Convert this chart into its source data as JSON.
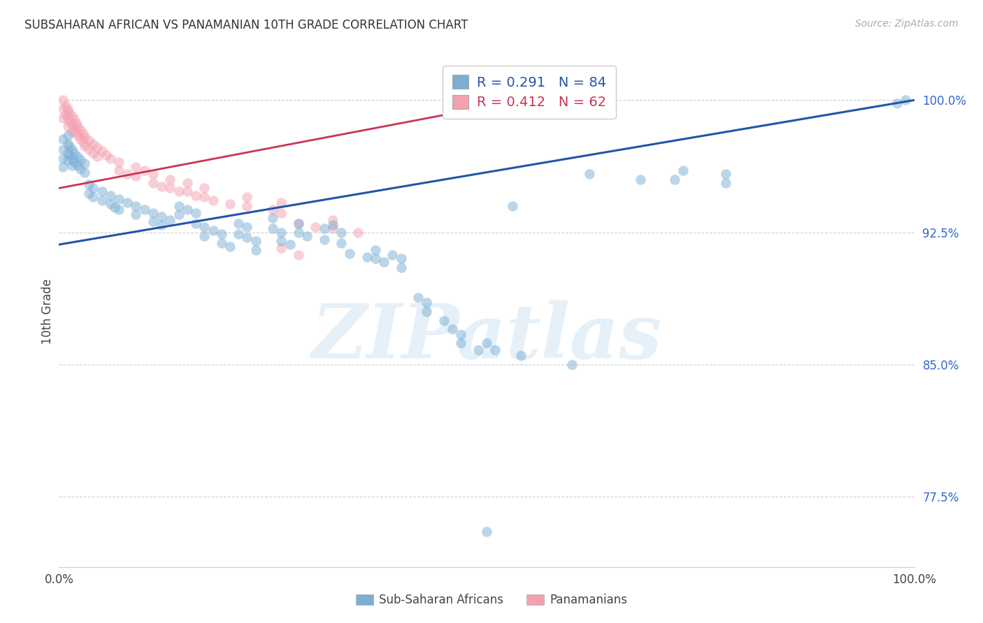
{
  "title": "SUBSAHARAN AFRICAN VS PANAMANIAN 10TH GRADE CORRELATION CHART",
  "source": "Source: ZipAtlas.com",
  "ylabel": "10th Grade",
  "yticks": [
    0.775,
    0.85,
    0.925,
    1.0
  ],
  "ytick_labels": [
    "77.5%",
    "85.0%",
    "92.5%",
    "100.0%"
  ],
  "xlim": [
    0.0,
    1.0
  ],
  "ylim": [
    0.735,
    1.025
  ],
  "blue_R": 0.291,
  "blue_N": 84,
  "pink_R": 0.412,
  "pink_N": 62,
  "blue_color": "#7BAFD4",
  "pink_color": "#F4A0B0",
  "blue_line_color": "#2255AA",
  "pink_line_color": "#CC3355",
  "legend_label_blue": "Sub-Saharan Africans",
  "legend_label_pink": "Panamanians",
  "watermark": "ZIPatlas",
  "blue_trend": [
    0.0,
    1.0,
    0.918,
    1.0
  ],
  "pink_trend": [
    0.0,
    0.52,
    0.95,
    0.998
  ],
  "blue_points": [
    [
      0.005,
      0.978
    ],
    [
      0.005,
      0.972
    ],
    [
      0.005,
      0.967
    ],
    [
      0.005,
      0.962
    ],
    [
      0.01,
      0.98
    ],
    [
      0.01,
      0.975
    ],
    [
      0.01,
      0.97
    ],
    [
      0.01,
      0.966
    ],
    [
      0.012,
      0.974
    ],
    [
      0.012,
      0.969
    ],
    [
      0.015,
      0.972
    ],
    [
      0.015,
      0.967
    ],
    [
      0.015,
      0.963
    ],
    [
      0.018,
      0.97
    ],
    [
      0.018,
      0.965
    ],
    [
      0.022,
      0.968
    ],
    [
      0.022,
      0.963
    ],
    [
      0.025,
      0.966
    ],
    [
      0.025,
      0.961
    ],
    [
      0.03,
      0.964
    ],
    [
      0.03,
      0.959
    ],
    [
      0.035,
      0.952
    ],
    [
      0.035,
      0.947
    ],
    [
      0.04,
      0.95
    ],
    [
      0.04,
      0.945
    ],
    [
      0.05,
      0.948
    ],
    [
      0.05,
      0.943
    ],
    [
      0.06,
      0.946
    ],
    [
      0.06,
      0.941
    ],
    [
      0.065,
      0.939
    ],
    [
      0.07,
      0.944
    ],
    [
      0.07,
      0.938
    ],
    [
      0.08,
      0.942
    ],
    [
      0.09,
      0.94
    ],
    [
      0.09,
      0.935
    ],
    [
      0.1,
      0.938
    ],
    [
      0.11,
      0.936
    ],
    [
      0.11,
      0.931
    ],
    [
      0.12,
      0.934
    ],
    [
      0.12,
      0.929
    ],
    [
      0.13,
      0.932
    ],
    [
      0.14,
      0.94
    ],
    [
      0.14,
      0.935
    ],
    [
      0.15,
      0.938
    ],
    [
      0.16,
      0.936
    ],
    [
      0.16,
      0.93
    ],
    [
      0.17,
      0.928
    ],
    [
      0.17,
      0.923
    ],
    [
      0.18,
      0.926
    ],
    [
      0.19,
      0.924
    ],
    [
      0.19,
      0.919
    ],
    [
      0.2,
      0.917
    ],
    [
      0.21,
      0.93
    ],
    [
      0.21,
      0.924
    ],
    [
      0.22,
      0.928
    ],
    [
      0.22,
      0.922
    ],
    [
      0.23,
      0.92
    ],
    [
      0.23,
      0.915
    ],
    [
      0.25,
      0.933
    ],
    [
      0.25,
      0.927
    ],
    [
      0.26,
      0.925
    ],
    [
      0.26,
      0.92
    ],
    [
      0.27,
      0.918
    ],
    [
      0.28,
      0.93
    ],
    [
      0.28,
      0.925
    ],
    [
      0.29,
      0.923
    ],
    [
      0.31,
      0.927
    ],
    [
      0.31,
      0.921
    ],
    [
      0.32,
      0.929
    ],
    [
      0.33,
      0.925
    ],
    [
      0.33,
      0.919
    ],
    [
      0.34,
      0.913
    ],
    [
      0.36,
      0.911
    ],
    [
      0.37,
      0.915
    ],
    [
      0.37,
      0.91
    ],
    [
      0.38,
      0.908
    ],
    [
      0.39,
      0.912
    ],
    [
      0.4,
      0.91
    ],
    [
      0.4,
      0.905
    ],
    [
      0.42,
      0.888
    ],
    [
      0.43,
      0.885
    ],
    [
      0.43,
      0.88
    ],
    [
      0.45,
      0.875
    ],
    [
      0.46,
      0.87
    ],
    [
      0.47,
      0.867
    ],
    [
      0.47,
      0.862
    ],
    [
      0.49,
      0.858
    ],
    [
      0.5,
      0.862
    ],
    [
      0.51,
      0.858
    ],
    [
      0.53,
      0.94
    ],
    [
      0.54,
      0.855
    ],
    [
      0.6,
      0.85
    ],
    [
      0.62,
      0.958
    ],
    [
      0.68,
      0.955
    ],
    [
      0.72,
      0.955
    ],
    [
      0.73,
      0.96
    ],
    [
      0.78,
      0.958
    ],
    [
      0.78,
      0.953
    ],
    [
      0.98,
      0.998
    ],
    [
      0.99,
      1.0
    ],
    [
      0.5,
      0.755
    ]
  ],
  "pink_points": [
    [
      0.005,
      1.0
    ],
    [
      0.005,
      0.995
    ],
    [
      0.005,
      0.99
    ],
    [
      0.008,
      0.997
    ],
    [
      0.008,
      0.992
    ],
    [
      0.01,
      0.995
    ],
    [
      0.01,
      0.99
    ],
    [
      0.01,
      0.985
    ],
    [
      0.012,
      0.993
    ],
    [
      0.012,
      0.988
    ],
    [
      0.015,
      0.991
    ],
    [
      0.015,
      0.986
    ],
    [
      0.015,
      0.982
    ],
    [
      0.018,
      0.989
    ],
    [
      0.018,
      0.984
    ],
    [
      0.02,
      0.987
    ],
    [
      0.02,
      0.982
    ],
    [
      0.022,
      0.985
    ],
    [
      0.022,
      0.98
    ],
    [
      0.025,
      0.983
    ],
    [
      0.025,
      0.978
    ],
    [
      0.028,
      0.981
    ],
    [
      0.028,
      0.976
    ],
    [
      0.03,
      0.979
    ],
    [
      0.03,
      0.974
    ],
    [
      0.035,
      0.977
    ],
    [
      0.035,
      0.972
    ],
    [
      0.04,
      0.975
    ],
    [
      0.04,
      0.97
    ],
    [
      0.045,
      0.973
    ],
    [
      0.045,
      0.968
    ],
    [
      0.05,
      0.971
    ],
    [
      0.055,
      0.969
    ],
    [
      0.06,
      0.967
    ],
    [
      0.07,
      0.965
    ],
    [
      0.07,
      0.96
    ],
    [
      0.08,
      0.958
    ],
    [
      0.09,
      0.962
    ],
    [
      0.09,
      0.957
    ],
    [
      0.1,
      0.96
    ],
    [
      0.11,
      0.958
    ],
    [
      0.11,
      0.953
    ],
    [
      0.12,
      0.951
    ],
    [
      0.13,
      0.955
    ],
    [
      0.13,
      0.95
    ],
    [
      0.14,
      0.948
    ],
    [
      0.15,
      0.953
    ],
    [
      0.15,
      0.948
    ],
    [
      0.16,
      0.946
    ],
    [
      0.17,
      0.95
    ],
    [
      0.17,
      0.945
    ],
    [
      0.18,
      0.943
    ],
    [
      0.2,
      0.941
    ],
    [
      0.22,
      0.945
    ],
    [
      0.22,
      0.94
    ],
    [
      0.25,
      0.938
    ],
    [
      0.26,
      0.942
    ],
    [
      0.26,
      0.936
    ],
    [
      0.28,
      0.93
    ],
    [
      0.3,
      0.928
    ],
    [
      0.32,
      0.932
    ],
    [
      0.32,
      0.927
    ],
    [
      0.35,
      0.925
    ],
    [
      0.26,
      0.916
    ],
    [
      0.28,
      0.912
    ]
  ]
}
